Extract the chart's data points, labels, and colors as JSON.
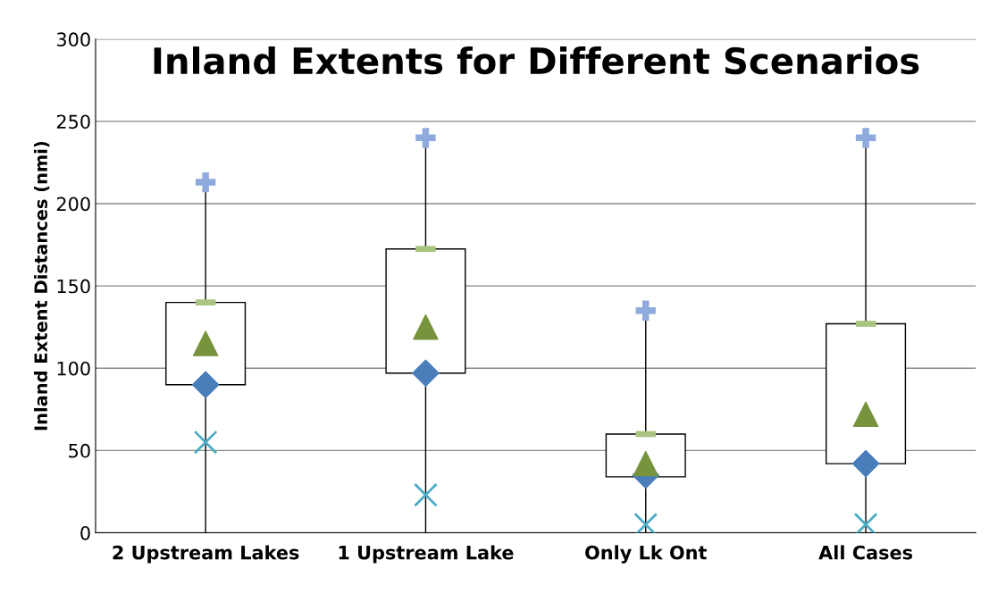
{
  "chart_data": {
    "type": "box",
    "title": "Inland Extents for Different Scenarios",
    "ylabel": "Inland Extent Distances (nmi)",
    "categories": [
      "2 Upstream Lakes",
      "1 Upstream Lake",
      "Only Lk Ont",
      "All Cases"
    ],
    "boxes": [
      {
        "low": 0,
        "q1": 90,
        "q3": 140,
        "high": 213
      },
      {
        "low": 0,
        "q1": 97,
        "q3": 172.5,
        "high": 240
      },
      {
        "low": 0,
        "q1": 34,
        "q3": 60,
        "high": 135
      },
      {
        "low": 0,
        "q1": 42,
        "q3": 127,
        "high": 240
      }
    ],
    "series": [
      {
        "type": "scatter",
        "marker": "plus",
        "color": "#8faadc",
        "x": [
          "2 Upstream Lakes",
          "1 Upstream Lake",
          "Only Lk Ont",
          "All Cases"
        ],
        "values": [
          213,
          240,
          135,
          240
        ]
      },
      {
        "type": "scatter",
        "marker": "square",
        "color": "#a9c47f",
        "x": [
          "2 Upstream Lakes",
          "1 Upstream Lake",
          "Only Lk Ont",
          "All Cases"
        ],
        "values": [
          140,
          172.5,
          60,
          127
        ]
      },
      {
        "type": "scatter",
        "marker": "triangle",
        "color": "#77933c",
        "x": [
          "2 Upstream Lakes",
          "1 Upstream Lake",
          "Only Lk Ont",
          "All Cases"
        ],
        "values": [
          115,
          125,
          42,
          72
        ]
      },
      {
        "type": "scatter",
        "marker": "diamond",
        "color": "#4a7ebb",
        "x": [
          "2 Upstream Lakes",
          "1 Upstream Lake",
          "Only Lk Ont",
          "All Cases"
        ],
        "values": [
          90,
          97,
          35,
          42
        ]
      },
      {
        "type": "scatter",
        "marker": "cross",
        "color": "#4bacc6",
        "x": [
          "2 Upstream Lakes",
          "1 Upstream Lake",
          "Only Lk Ont",
          "All Cases"
        ],
        "values": [
          55,
          23,
          5,
          5
        ]
      }
    ],
    "ylim": [
      0,
      300
    ],
    "yticks": [
      0,
      50,
      100,
      150,
      200,
      250,
      300
    ],
    "grid": "y",
    "legend": false
  }
}
